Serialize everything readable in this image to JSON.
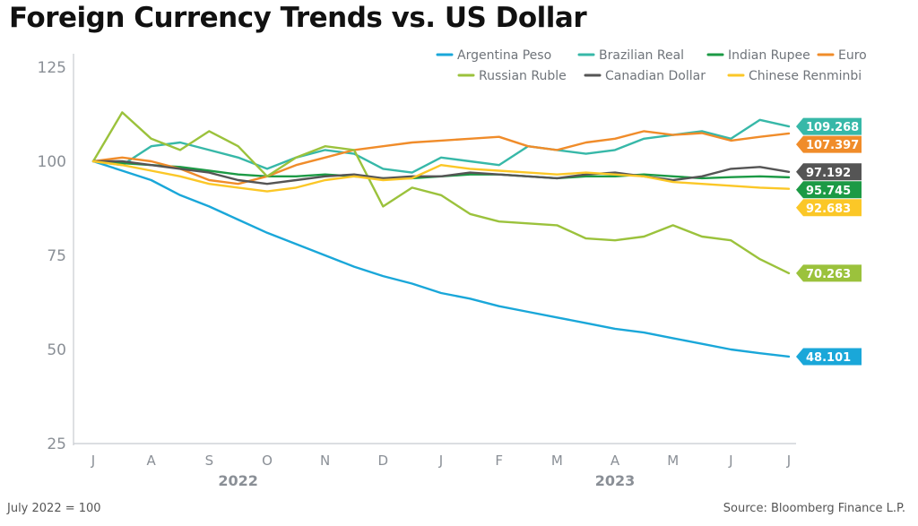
{
  "header": {
    "title": "Foreign Currency Trends vs. US Dollar"
  },
  "footer": {
    "note": "July 2022 = 100",
    "source": "Source: Bloomberg Finance L.P."
  },
  "chart_data": {
    "type": "line",
    "title": "Foreign Currency Trends vs. US Dollar",
    "xlabel": "",
    "ylabel": "",
    "ylim": [
      25,
      125
    ],
    "yticks": [
      25,
      50,
      75,
      100,
      125
    ],
    "grid": false,
    "legend_position": "top-right",
    "x_months": [
      "J",
      "A",
      "S",
      "O",
      "N",
      "D",
      "J",
      "F",
      "M",
      "A",
      "M",
      "J",
      "J"
    ],
    "year_labels": [
      {
        "label": "2022",
        "month_index": 2.5
      },
      {
        "label": "2023",
        "month_index": 9.0
      }
    ],
    "x": [
      0,
      0.5,
      1,
      1.5,
      2,
      2.5,
      3,
      3.5,
      4,
      4.5,
      5,
      5.5,
      6,
      6.5,
      7,
      7.5,
      8,
      8.5,
      9,
      9.5,
      10,
      10.5,
      11,
      11.5,
      12
    ],
    "series": [
      {
        "name": "Argentina Peso",
        "color": "#1aa7d9",
        "values": [
          100,
          97.5,
          95,
          91,
          88,
          84.5,
          81,
          78,
          75,
          72,
          69.5,
          67.5,
          65,
          63.5,
          61.5,
          60,
          58.5,
          57,
          55.5,
          54.5,
          53,
          51.5,
          50,
          49,
          48.101
        ],
        "last_label": "48.101"
      },
      {
        "name": "Brazilian Real",
        "color": "#37b8a8",
        "values": [
          100,
          99,
          104,
          105,
          103,
          101,
          98,
          101,
          103,
          102,
          98,
          97,
          101,
          100,
          99,
          104,
          103,
          102,
          103,
          106,
          107,
          108,
          106,
          111,
          109.268
        ],
        "last_label": "109.268"
      },
      {
        "name": "Indian Rupee",
        "color": "#1c9a45",
        "values": [
          100,
          99.5,
          99,
          98.5,
          97.5,
          96.5,
          96,
          96,
          96.5,
          96,
          95.5,
          95.5,
          96,
          96.5,
          96.5,
          96,
          95.5,
          96,
          96,
          96.5,
          96,
          95.5,
          95.8,
          96,
          95.745
        ],
        "last_label": "95.745"
      },
      {
        "name": "Euro",
        "color": "#f08c2a",
        "values": [
          100,
          101,
          100,
          98,
          95,
          94,
          96,
          99,
          101,
          103,
          104,
          105,
          105.5,
          106,
          106.5,
          104,
          103,
          105,
          106,
          108,
          107,
          107.5,
          105.5,
          106.5,
          107.397
        ],
        "last_label": "107.397"
      },
      {
        "name": "Russian Ruble",
        "color": "#9bc23c",
        "values": [
          100,
          113,
          106,
          103,
          108,
          104,
          96,
          101,
          104,
          103,
          88,
          93,
          91,
          86,
          84,
          83.5,
          83,
          79.5,
          79,
          80,
          83,
          80,
          79,
          74,
          70.263
        ],
        "last_label": "70.263"
      },
      {
        "name": "Canadian Dollar",
        "color": "#555555",
        "values": [
          100,
          100,
          99,
          98,
          97,
          95,
          94,
          95,
          96,
          96.5,
          95.5,
          96,
          96,
          97,
          96.5,
          96,
          95.5,
          96.5,
          97,
          96,
          95,
          96,
          98,
          98.5,
          97.192
        ],
        "last_label": "97.192"
      },
      {
        "name": "Chinese Renminbi",
        "color": "#fbc727",
        "values": [
          100,
          99,
          97.5,
          96,
          94,
          93,
          92,
          93,
          95,
          96,
          95,
          95.5,
          99,
          98,
          97.5,
          97,
          96.5,
          97,
          96.5,
          96,
          94.5,
          94,
          93.5,
          93,
          92.683
        ],
        "last_label": "92.683"
      }
    ]
  }
}
